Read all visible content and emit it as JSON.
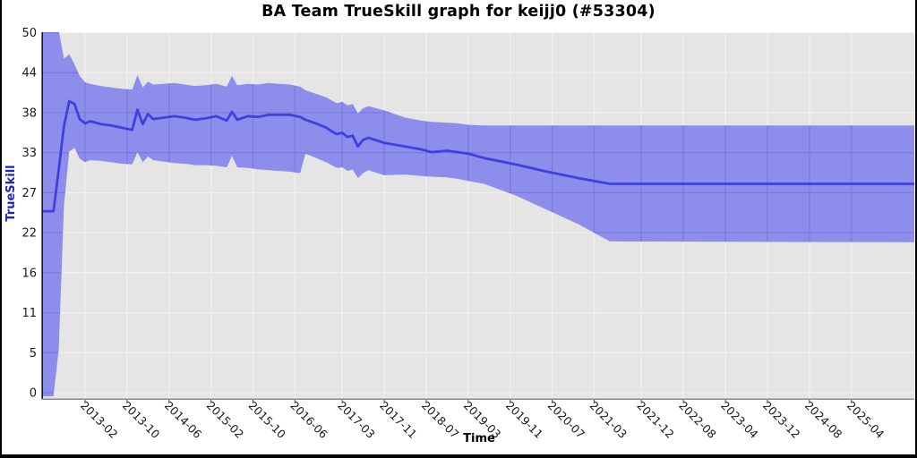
{
  "window": {
    "title": "BA Team TrueSkill graph for keijj0 (#53304)"
  },
  "chart_data": {
    "type": "line",
    "title": "BA Team TrueSkill graph for keijj0 (#53304)",
    "xlabel": "Time",
    "ylabel": "TrueSkill",
    "grid": true,
    "legend_position": "none",
    "series_name": "TrueSkill estimate (mu) with uncertainty band",
    "y_domain": [
      0,
      50
    ],
    "y_tick_labels": [
      "0",
      "5",
      "11",
      "16",
      "22",
      "27",
      "33",
      "38",
      "44",
      "50"
    ],
    "x_domain": [
      "2012-06",
      "2026-04"
    ],
    "x_ticks": [
      "2013-02",
      "2013-10",
      "2014-06",
      "2015-02",
      "2015-10",
      "2016-06",
      "2017-03",
      "2017-11",
      "2018-07",
      "2019-03",
      "2019-11",
      "2020-07",
      "2021-03",
      "2021-12",
      "2022-08",
      "2023-04",
      "2023-12",
      "2024-08",
      "2025-04"
    ],
    "points_format": [
      "date",
      "mu",
      "band_low",
      "band_high"
    ],
    "points": [
      [
        "2012-06",
        25.2,
        -0.5,
        50.5
      ],
      [
        "2012-08",
        25.2,
        -0.5,
        50.5
      ],
      [
        "2012-09",
        31.0,
        6.0,
        50.3
      ],
      [
        "2012-10",
        37.0,
        26.0,
        46.4
      ],
      [
        "2012-11",
        40.5,
        33.5,
        47.0
      ],
      [
        "2012-12",
        40.1,
        34.0,
        45.6
      ],
      [
        "2013-01",
        38.0,
        32.5,
        44.0
      ],
      [
        "2013-02",
        37.4,
        32.0,
        43.1
      ],
      [
        "2013-03",
        37.7,
        32.3,
        42.9
      ],
      [
        "2013-05",
        37.3,
        32.2,
        42.6
      ],
      [
        "2013-07",
        37.1,
        32.0,
        42.4
      ],
      [
        "2013-09",
        36.8,
        31.8,
        42.2
      ],
      [
        "2013-11",
        36.5,
        31.7,
        42.1
      ],
      [
        "2013-12",
        39.3,
        33.4,
        44.1
      ],
      [
        "2014-01",
        37.3,
        32.0,
        42.4
      ],
      [
        "2014-02",
        38.7,
        32.8,
        43.2
      ],
      [
        "2014-03",
        38.0,
        32.3,
        42.8
      ],
      [
        "2014-05",
        38.2,
        32.1,
        42.9
      ],
      [
        "2014-07",
        38.4,
        31.9,
        43.0
      ],
      [
        "2014-09",
        38.2,
        31.8,
        42.8
      ],
      [
        "2014-11",
        37.9,
        31.6,
        42.6
      ],
      [
        "2015-01",
        38.1,
        31.6,
        42.7
      ],
      [
        "2015-03",
        38.4,
        31.5,
        42.9
      ],
      [
        "2015-05",
        37.8,
        31.3,
        42.5
      ],
      [
        "2015-06",
        39.0,
        32.9,
        44.0
      ],
      [
        "2015-07",
        37.9,
        31.3,
        42.7
      ],
      [
        "2015-09",
        38.4,
        31.2,
        42.9
      ],
      [
        "2015-11",
        38.3,
        31.0,
        42.8
      ],
      [
        "2016-01",
        38.6,
        30.9,
        43.0
      ],
      [
        "2016-03",
        38.6,
        30.8,
        42.9
      ],
      [
        "2016-05",
        38.6,
        30.7,
        42.8
      ],
      [
        "2016-07",
        38.3,
        30.5,
        42.5
      ],
      [
        "2016-08",
        37.9,
        33.2,
        42.0
      ],
      [
        "2016-10",
        37.4,
        32.6,
        41.5
      ],
      [
        "2016-12",
        36.8,
        32.0,
        41.0
      ],
      [
        "2017-01",
        36.3,
        31.6,
        40.6
      ],
      [
        "2017-02",
        35.9,
        31.2,
        40.2
      ],
      [
        "2017-03",
        36.1,
        31.3,
        40.4
      ],
      [
        "2017-04",
        35.5,
        30.8,
        39.9
      ],
      [
        "2017-05",
        35.7,
        31.0,
        40.1
      ],
      [
        "2017-06",
        34.2,
        29.8,
        38.8
      ],
      [
        "2017-07",
        35.1,
        30.5,
        39.5
      ],
      [
        "2017-08",
        35.4,
        30.9,
        39.8
      ],
      [
        "2017-11",
        34.7,
        30.2,
        39.2
      ],
      [
        "2018-03",
        34.2,
        30.3,
        38.2
      ],
      [
        "2018-06",
        33.8,
        30.1,
        37.8
      ],
      [
        "2018-08",
        33.4,
        30.0,
        37.6
      ],
      [
        "2018-11",
        33.6,
        29.9,
        37.5
      ],
      [
        "2019-01",
        33.4,
        29.7,
        37.4
      ],
      [
        "2019-03",
        33.2,
        29.4,
        37.2
      ],
      [
        "2019-06",
        32.6,
        29.0,
        37.1
      ],
      [
        "2019-12",
        31.7,
        27.4,
        37.1
      ],
      [
        "2020-06",
        30.7,
        25.4,
        37.1
      ],
      [
        "2020-12",
        29.8,
        23.4,
        37.1
      ],
      [
        "2021-06",
        29.0,
        21.0,
        37.1
      ],
      [
        "2026-04",
        29.0,
        20.9,
        37.1
      ]
    ],
    "colors": {
      "line": "#3f3fe3",
      "band": "#8d8deb",
      "panel": "#e5e5e5",
      "grid": "#f1f1f1",
      "grid_on_band": "#7b7bdc",
      "y_axis_label": "#2121cc",
      "tick_text": "#1a1a1a",
      "axis_line": "#151515",
      "bottom_line": "#8a8a8a"
    }
  }
}
